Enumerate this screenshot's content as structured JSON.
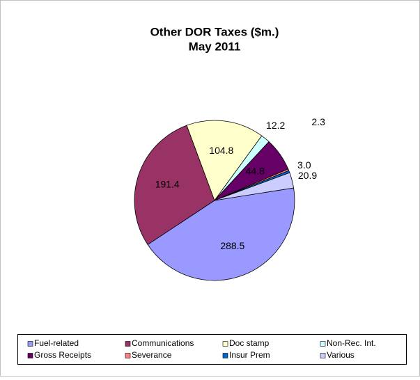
{
  "chart_data": {
    "type": "pie",
    "title": [
      "Other DOR Taxes ($m.)",
      "May 2011"
    ],
    "categories": [
      "Fuel-related",
      "Communications",
      "Doc stamp",
      "Non-Rec. Int.",
      "Gross Receipts",
      "Severance",
      "Insur Prem",
      "Various"
    ],
    "values": [
      288.5,
      191.4,
      104.8,
      12.2,
      44.8,
      2.3,
      3.0,
      20.9
    ],
    "value_labels": [
      "288.5",
      "191.4",
      "104.8",
      "12.2",
      "44.8",
      "2.3",
      "3.0",
      "20.9"
    ],
    "colors": [
      "#9999ff",
      "#993366",
      "#ffffcc",
      "#ccffff",
      "#660066",
      "#ff8080",
      "#0066cc",
      "#ccccff"
    ],
    "legend": "bottom"
  }
}
